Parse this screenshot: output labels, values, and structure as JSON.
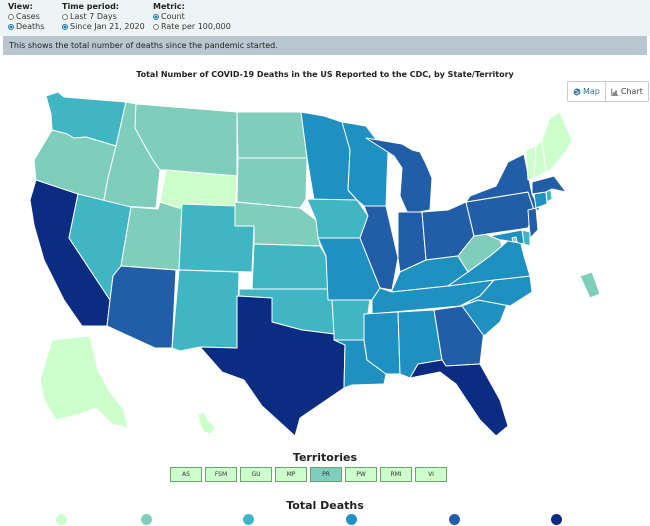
{
  "controls": {
    "view": {
      "heading": "View:",
      "options": [
        "Cases",
        "Deaths"
      ],
      "selected": "Deaths"
    },
    "time_period": {
      "heading": "Time period:",
      "options": [
        "Last 7 Days",
        "Since Jan 21, 2020"
      ],
      "selected": "Since Jan 21, 2020"
    },
    "metric": {
      "heading": "Metric:",
      "options": [
        "Count",
        "Rate per 100,000"
      ],
      "selected": "Count"
    }
  },
  "info_text": "This shows the total number of deaths since the pandemic started.",
  "map_title": "Total Number of COVID-19 Deaths in the US Reported to the CDC, by State/Territory",
  "toggle": {
    "map_label": "Map",
    "chart_label": "Chart",
    "active": "Map"
  },
  "colors": {
    "c0": "#ccffcc",
    "c1": "#7fcdbb",
    "c2": "#40b6c4",
    "c3": "#1e91c0",
    "c4": "#225ea8",
    "c5": "#0c2c84"
  },
  "states": {
    "WA": "c2",
    "OR": "c1",
    "CA": "c5",
    "ID": "c1",
    "NV": "c2",
    "AZ": "c4",
    "UT": "c1",
    "MT": "c1",
    "WY": "c0",
    "CO": "c2",
    "NM": "c2",
    "ND": "c1",
    "SD": "c1",
    "NE": "c1",
    "KS": "c2",
    "OK": "c2",
    "TX": "c5",
    "MN": "c3",
    "IA": "c2",
    "MO": "c3",
    "AR": "c2",
    "LA": "c3",
    "WI": "c3",
    "IL": "c4",
    "MI": "c4",
    "IN": "c4",
    "OH": "c4",
    "KY": "c3",
    "TN": "c3",
    "MS": "c3",
    "AL": "c3",
    "GA": "c4",
    "FL": "c5",
    "SC": "c3",
    "NC": "c3",
    "VA": "c3",
    "WV": "c1",
    "PA": "c4",
    "NY": "c4",
    "NJ": "c4",
    "ME": "c0",
    "NH": "c0",
    "VT": "c0",
    "MA": "c4",
    "CT": "c3",
    "RI": "c2",
    "DE": "c2",
    "MD": "c3",
    "DC": "c1",
    "AK": "c0",
    "HI": "c0"
  },
  "territories": {
    "title": "Territories",
    "items": [
      {
        "label": "AS",
        "color": "c0"
      },
      {
        "label": "FSM",
        "color": "c0"
      },
      {
        "label": "GU",
        "color": "c0"
      },
      {
        "label": "MP",
        "color": "c0"
      },
      {
        "label": "PR",
        "color": "c1"
      },
      {
        "label": "PW",
        "color": "c0"
      },
      {
        "label": "RMI",
        "color": "c0"
      },
      {
        "label": "VI",
        "color": "c0"
      }
    ]
  },
  "legend": {
    "title": "Total Deaths",
    "bins": [
      "c0",
      "c1",
      "c2",
      "c3",
      "c4",
      "c5"
    ]
  }
}
